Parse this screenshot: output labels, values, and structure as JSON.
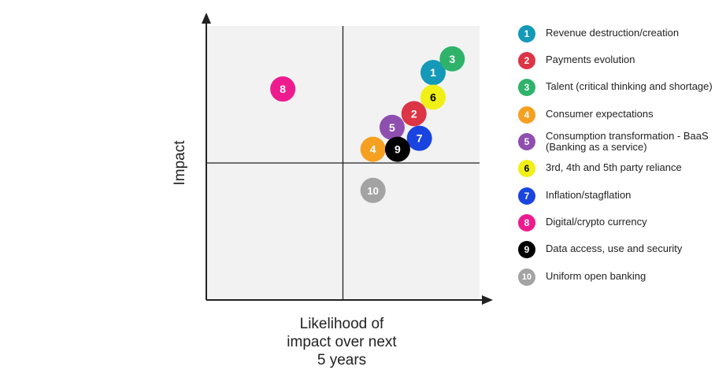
{
  "chart_data": {
    "type": "scatter",
    "title": "",
    "xlabel": "Likelihood of impact over next 5 years",
    "xlabel_lines": [
      "Likelihood of",
      "impact over next",
      "5 years"
    ],
    "ylabel": "Impact",
    "xlim": [
      0,
      100
    ],
    "ylim": [
      0,
      100
    ],
    "grid": false,
    "quadrant_dividers": {
      "x": 50,
      "y": 50
    },
    "legend_position": "right",
    "points": [
      {
        "id": "1",
        "label": "Revenue destruction/creation",
        "x": 83,
        "y": 83,
        "color": "#1499b8"
      },
      {
        "id": "2",
        "label": "Payments evolution",
        "x": 76,
        "y": 68,
        "color": "#dc3545"
      },
      {
        "id": "3",
        "label": "Talent (critical thinking and shortage)",
        "x": 90,
        "y": 88,
        "color": "#2fb36b"
      },
      {
        "id": "4",
        "label": "Consumer expectations",
        "x": 61,
        "y": 55,
        "color": "#f5a021"
      },
      {
        "id": "5",
        "label": "Consumption transformation - BaaS (Banking as a service)",
        "x": 68,
        "y": 63,
        "color": "#8e4fb0"
      },
      {
        "id": "6",
        "label": "3rd, 4th and 5th party reliance",
        "x": 83,
        "y": 74,
        "color": "#f0f016"
      },
      {
        "id": "7",
        "label": "Inflation/stagflation",
        "x": 78,
        "y": 59,
        "color": "#1a44df"
      },
      {
        "id": "8",
        "label": "Digital/crypto currency",
        "x": 28,
        "y": 77,
        "color": "#ee1b8e"
      },
      {
        "id": "9",
        "label": "Data access, use and security",
        "x": 70,
        "y": 55,
        "color": "#000000"
      },
      {
        "id": "10",
        "label": "Uniform open banking",
        "x": 61,
        "y": 40,
        "color": "#a3a3a3"
      }
    ]
  }
}
